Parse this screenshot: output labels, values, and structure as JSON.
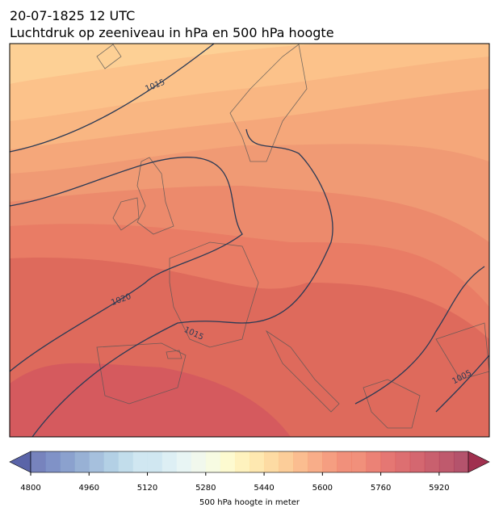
{
  "header": {
    "date": "20-07-1825 12 UTC",
    "title": "Luchtdruk op zeeniveau in hPa en 500 hPa hoogte"
  },
  "map": {
    "isobar_labels": [
      1015,
      1020,
      1015,
      1005
    ]
  },
  "colorbar": {
    "range": [
      4800,
      6000
    ],
    "ticks": [
      4800,
      4960,
      5120,
      5280,
      5440,
      5600,
      5760,
      5920
    ],
    "label": "500 hPa hoogte in meter"
  }
}
